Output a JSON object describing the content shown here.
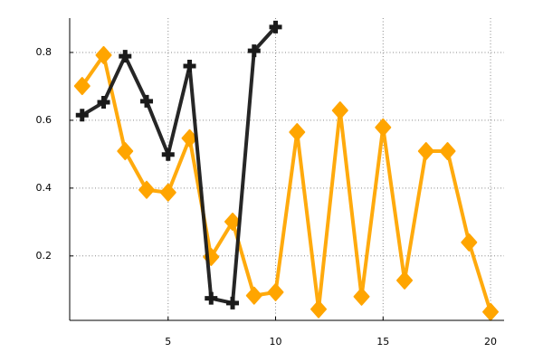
{
  "chart_data": {
    "type": "line",
    "x": [
      1,
      2,
      3,
      4,
      5,
      6,
      7,
      8,
      9,
      10,
      11,
      12,
      13,
      14,
      15,
      16,
      17,
      18,
      19,
      20
    ],
    "series": [
      {
        "color": "#ffa500",
        "marker": "diamond",
        "values": [
          0.701,
          0.792,
          0.509,
          0.395,
          0.387,
          0.547,
          0.197,
          0.301,
          0.083,
          0.093,
          0.565,
          0.043,
          0.629,
          0.08,
          0.579,
          0.128,
          0.509,
          0.509,
          0.24,
          0.035
        ]
      },
      {
        "color": "#1a1a1a",
        "marker": "cross",
        "values": [
          0.615,
          0.653,
          0.789,
          0.656,
          0.499,
          0.76,
          0.075,
          0.061,
          0.805,
          0.875,
          null,
          null,
          null,
          null,
          null,
          null,
          null,
          null,
          null,
          null
        ]
      }
    ],
    "xlim": [
      0.42,
      20.63
    ],
    "ylim": [
      0.01,
      0.9013
    ],
    "xticks": [
      5,
      10,
      15,
      20
    ],
    "yticks": [
      0.2,
      0.4,
      0.6,
      0.8
    ],
    "grid": true
  }
}
